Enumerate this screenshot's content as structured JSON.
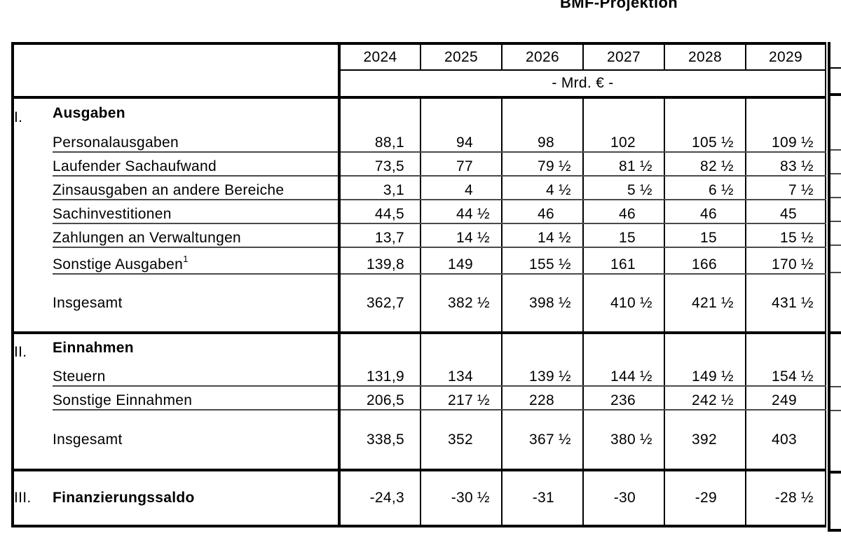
{
  "title": "BMF-Projektion",
  "table": {
    "unit_label": "- Mrd. € -",
    "years": [
      "2024",
      "2025",
      "2026",
      "2027",
      "2028",
      "2029"
    ],
    "sections": [
      {
        "numeral": "I.",
        "heading": "Ausgaben",
        "rows": [
          {
            "label": "Personalausgaben",
            "values": [
              "88,1",
              "94",
              "98",
              "102",
              "105 ½",
              "109 ½"
            ]
          },
          {
            "label": "Laufender Sachaufwand",
            "values": [
              "73,5",
              "77",
              "79 ½",
              "81 ½",
              "82 ½",
              "83 ½"
            ]
          },
          {
            "label": "Zinsausgaben an andere Bereiche",
            "values": [
              "3,1",
              "4",
              "4 ½",
              "5 ½",
              "6 ½",
              "7 ½"
            ]
          },
          {
            "label": "Sachinvestitionen",
            "values": [
              "44,5",
              "44 ½",
              "46",
              "46",
              "46",
              "45"
            ]
          },
          {
            "label": "Zahlungen an Verwaltungen",
            "values": [
              "13,7",
              "14 ½",
              "14 ½",
              "15",
              "15",
              "15 ½"
            ]
          },
          {
            "label": "Sonstige Ausgaben",
            "sup": "1",
            "values": [
              "139,8",
              "149",
              "155 ½",
              "161",
              "166",
              "170 ½"
            ]
          }
        ],
        "total": {
          "label": "Insgesamt",
          "values": [
            "362,7",
            "382 ½",
            "398 ½",
            "410 ½",
            "421 ½",
            "431 ½"
          ]
        }
      },
      {
        "numeral": "II.",
        "heading": "Einnahmen",
        "rows": [
          {
            "label": "Steuern",
            "values": [
              "131,9",
              "134",
              "139 ½",
              "144 ½",
              "149 ½",
              "154 ½"
            ]
          },
          {
            "label": "Sonstige Einnahmen",
            "values": [
              "206,5",
              "217 ½",
              "228",
              "236",
              "242 ½",
              "249"
            ]
          }
        ],
        "total": {
          "label": "Insgesamt",
          "values": [
            "338,5",
            "352",
            "367 ½",
            "380 ½",
            "392",
            "403"
          ]
        }
      }
    ],
    "balance": {
      "numeral": "III.",
      "label": "Finanzierungssaldo",
      "values": [
        "-24,3",
        "-30 ½",
        "-31",
        "-30",
        "-29",
        "-28 ½"
      ]
    }
  }
}
